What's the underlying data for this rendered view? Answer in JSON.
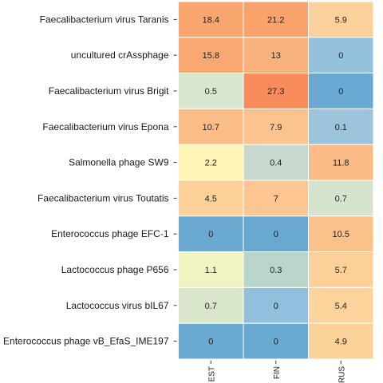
{
  "chart_data": {
    "type": "heatmap",
    "title": "",
    "xlabel": "",
    "ylabel": "",
    "x_categories": [
      "EST",
      "FIN",
      "RUS"
    ],
    "y_categories": [
      "Faecalibacterium virus Taranis",
      "uncultured crAssphage",
      "Faecalibacterium virus Brigit",
      "Faecalibacterium virus Epona",
      "Salmonella phage SW9",
      "Faecalibacterium virus Toutatis",
      "Enterococcus phage EFC-1",
      "Lactococcus phage P656",
      "Lactococcus virus bIL67",
      "Enterococcus phage vB_EfaS_IME197"
    ],
    "values": [
      [
        18.4,
        21.2,
        5.9
      ],
      [
        15.8,
        13,
        0
      ],
      [
        0.5,
        27.3,
        0
      ],
      [
        10.7,
        7.9,
        0.1
      ],
      [
        2.2,
        0.4,
        11.8
      ],
      [
        4.5,
        7,
        0.7
      ],
      [
        0,
        0,
        10.5
      ],
      [
        1.1,
        0.3,
        5.7
      ],
      [
        0.7,
        0,
        5.4
      ],
      [
        0,
        0,
        4.9
      ]
    ],
    "cell_colors": [
      [
        "#f9a66e",
        "#f9a26b",
        "#fdd19c"
      ],
      [
        "#f9a872",
        "#fab27c",
        "#94c1dc"
      ],
      [
        "#d9e6cf",
        "#f98c5c",
        "#6aa9d1"
      ],
      [
        "#fbbd87",
        "#fbc48e",
        "#9bc4da"
      ],
      [
        "#fdf4b5",
        "#c7dacd",
        "#fbbb86"
      ],
      [
        "#fcd199",
        "#fcc591",
        "#d7e4cd"
      ],
      [
        "#69a8cf",
        "#69a8cf",
        "#fcc18b"
      ],
      [
        "#f1f4c2",
        "#bad5cc",
        "#fdd09a"
      ],
      [
        "#d9e5cb",
        "#92c0dc",
        "#fdd39c"
      ],
      [
        "#6aa9d0",
        "#6aa9d0",
        "#fcd29b"
      ]
    ],
    "grid": true,
    "legend": "none"
  }
}
